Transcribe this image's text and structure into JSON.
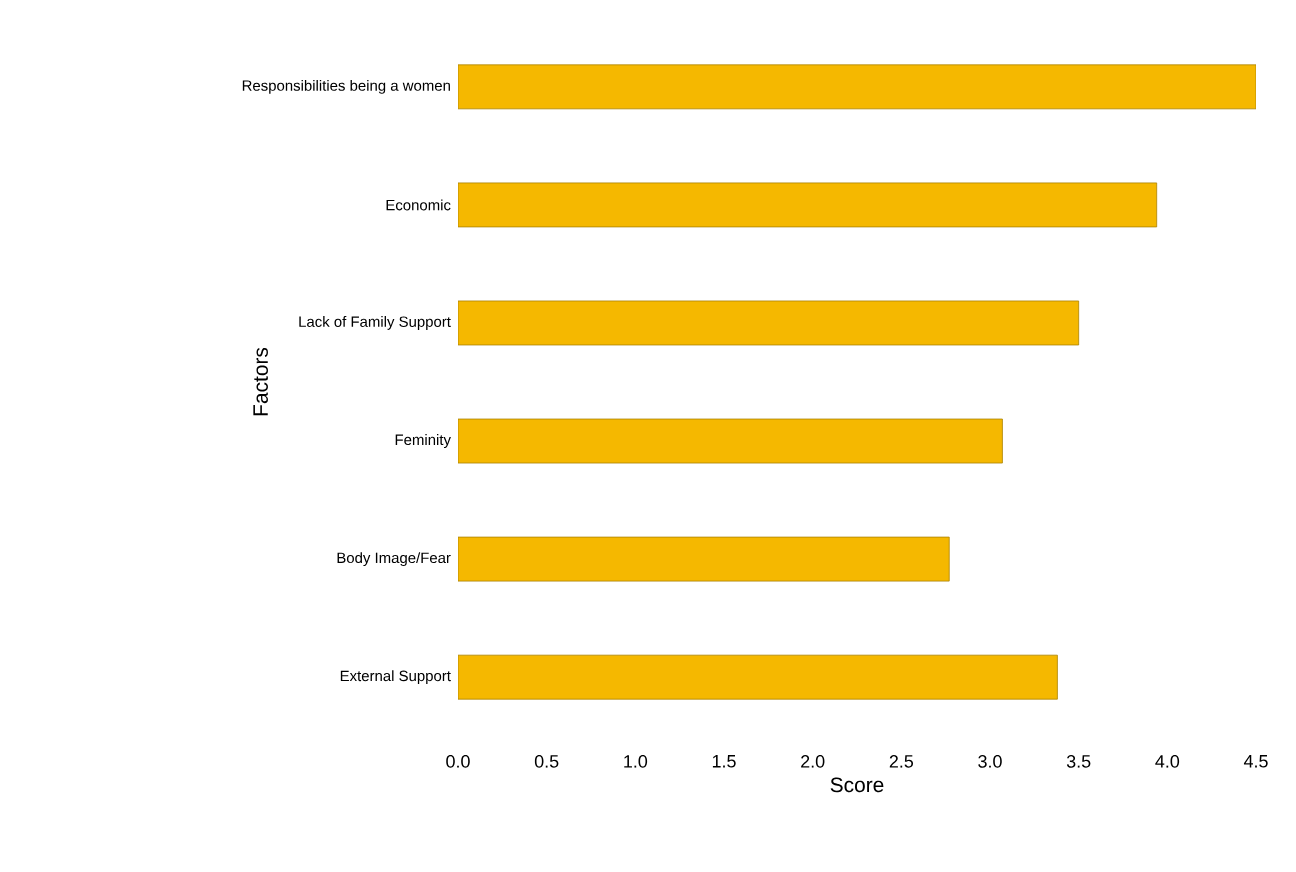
{
  "chart_data": {
    "type": "bar",
    "orientation": "horizontal",
    "xlabel": "Score",
    "ylabel": "Factors",
    "categories": [
      "Responsibilities being a women",
      "Economic",
      "Lack of Family Support",
      "Feminity",
      "Body Image/Fear",
      "External Support"
    ],
    "values": [
      4.5,
      3.94,
      3.5,
      3.07,
      2.77,
      3.38
    ],
    "color": "#f5b800",
    "xlim": [
      0,
      4.5
    ],
    "xticks": [
      {
        "value": 0,
        "label": "0.0"
      },
      {
        "value": 0.5,
        "label": "0.5"
      },
      {
        "value": 1,
        "label": "1.0"
      },
      {
        "value": 1.5,
        "label": "1.5"
      },
      {
        "value": 2,
        "label": "2.0"
      },
      {
        "value": 2.5,
        "label": "2.5"
      },
      {
        "value": 3,
        "label": "3.0"
      },
      {
        "value": 3.5,
        "label": "3.5"
      },
      {
        "value": 4,
        "label": "4.0"
      },
      {
        "value": 4.5,
        "label": "4.5"
      }
    ],
    "grid": false
  }
}
